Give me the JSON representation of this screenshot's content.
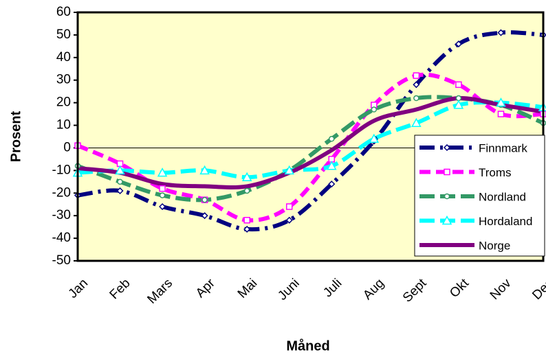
{
  "chart_data": {
    "type": "line",
    "x_label": "Måned",
    "y_label": "Prosent",
    "categories": [
      "Jan",
      "Feb",
      "Mars",
      "Apr",
      "Mai",
      "Juni",
      "Juli",
      "Aug",
      "Sept",
      "Okt",
      "Nov",
      "Des"
    ],
    "ylim": [
      -50,
      60
    ],
    "yticks": [
      -50,
      -40,
      -30,
      -20,
      -10,
      0,
      10,
      20,
      30,
      40,
      50,
      60
    ],
    "smooth": true,
    "legend": "lower right",
    "series": [
      {
        "name": "Finnmark",
        "color": "#000080",
        "marker": "diamond",
        "dash": "22 8 4 8",
        "values": [
          -21,
          -19,
          -26,
          -30,
          -36,
          -32,
          -16,
          3,
          28,
          46,
          51,
          50
        ]
      },
      {
        "name": "Troms",
        "color": "#ff00ff",
        "marker": "square",
        "dash": "16 8",
        "values": [
          1,
          -7,
          -18,
          -23,
          -32,
          -26,
          -5,
          19,
          32,
          28,
          15,
          15
        ]
      },
      {
        "name": "Nordland",
        "color": "#339966",
        "marker": "circle",
        "dash": "22 8",
        "values": [
          -8,
          -15,
          -21,
          -23,
          -19,
          -10,
          4,
          17,
          22,
          22,
          19,
          11
        ]
      },
      {
        "name": "Hordaland",
        "color": "#00ffff",
        "marker": "triangle",
        "dash": "22 8",
        "values": [
          -11,
          -10,
          -11,
          -10,
          -13,
          -10,
          -8,
          4,
          11,
          19,
          20,
          18
        ]
      },
      {
        "name": "Norge",
        "color": "#800080",
        "marker": "none",
        "dash": "none",
        "values": [
          -9,
          -11,
          -16,
          -17,
          -17,
          -11,
          -1,
          12,
          17,
          22,
          19,
          16
        ]
      }
    ]
  }
}
